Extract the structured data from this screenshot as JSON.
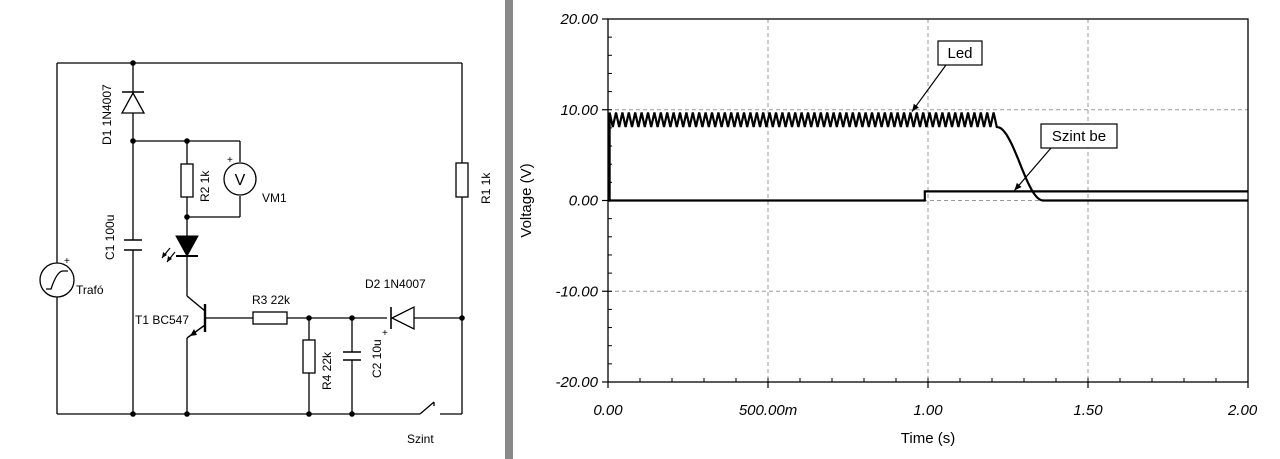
{
  "schematic": {
    "components": {
      "d1": "D1 1N4007",
      "c1": "C1 100u",
      "r2": "R2 1k",
      "vm1": "VM1",
      "vm1_symbol": "V",
      "r1": "R1 1k",
      "trafo": "Trafó",
      "t1": "T1 BC547",
      "r3": "R3 22k",
      "r4": "R4 22k",
      "c2": "C2 10u",
      "d2": "D2 1N4007",
      "switch": "Szint"
    }
  },
  "chart_data": {
    "type": "line",
    "xlabel": "Time (s)",
    "ylabel": "Voltage (V)",
    "xlim": [
      0,
      2
    ],
    "ylim": [
      -20,
      20
    ],
    "x_ticks": [
      0,
      0.5,
      1,
      1.5,
      2
    ],
    "x_tick_labels": [
      "0.00",
      "500.00m",
      "1.00",
      "1.50",
      "2.00"
    ],
    "y_ticks": [
      20,
      10,
      0,
      -10,
      -20
    ],
    "y_tick_labels": [
      "20.00",
      "10.00",
      "0.00",
      "-10.00",
      "-20.00"
    ],
    "grid": true,
    "series": [
      {
        "name": "Led",
        "style": "ripple",
        "rise_at": 0.005,
        "ripple_min": 8.1,
        "ripple_max": 9.7,
        "ripple_period": 0.02,
        "ripple_end": 1.22,
        "fall_end": 1.36,
        "final": 0,
        "color": "#000000"
      },
      {
        "name": "Szint be",
        "points": [
          [
            0,
            0
          ],
          [
            0.99,
            0
          ],
          [
            0.99,
            1.0
          ],
          [
            2.0,
            1.0
          ]
        ],
        "color": "#000000"
      }
    ],
    "annotations": [
      {
        "text": "Led",
        "target": [
          0.95,
          9.8
        ]
      },
      {
        "text": "Szint be",
        "target": [
          1.27,
          1.1
        ]
      }
    ]
  }
}
